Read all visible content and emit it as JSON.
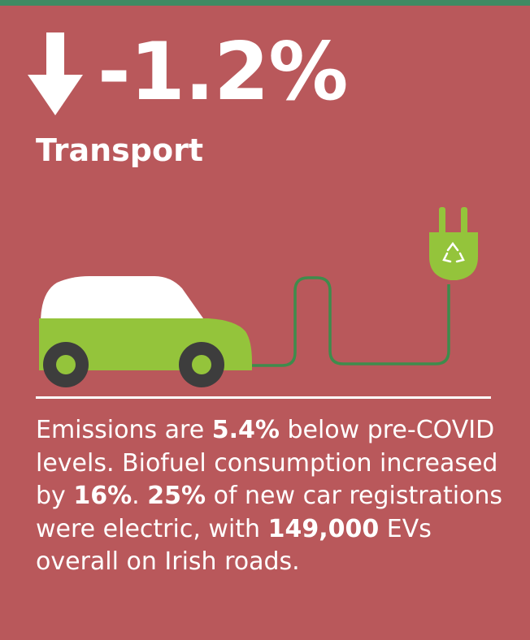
{
  "header": {
    "accent_color": "#3f8a63",
    "arrow_icon": "down-arrow-icon",
    "change_value": "-1.2%",
    "sector": "Transport"
  },
  "illustration": {
    "car_icon": "electric-car-icon",
    "plug_icon": "electric-plug-icon",
    "recycle_icon": "recycle-icon",
    "car_body_color": "#94c43b",
    "car_roof_color": "#ffffff",
    "wheel_color": "#3d3d3d",
    "cable_color": "#3e8c4c"
  },
  "summary": {
    "t1": "Emissions are ",
    "b1": "5.4%",
    "t2": " below pre-COVID levels. Biofuel consumption increased by ",
    "b2": "16%",
    "t3": ". ",
    "b3": "25%",
    "t4": " of new car registrations were electric, with ",
    "b4": "149,000",
    "t5": " EVs overall on Irish roads."
  },
  "colors": {
    "background": "#b9585b",
    "text": "#ffffff"
  }
}
